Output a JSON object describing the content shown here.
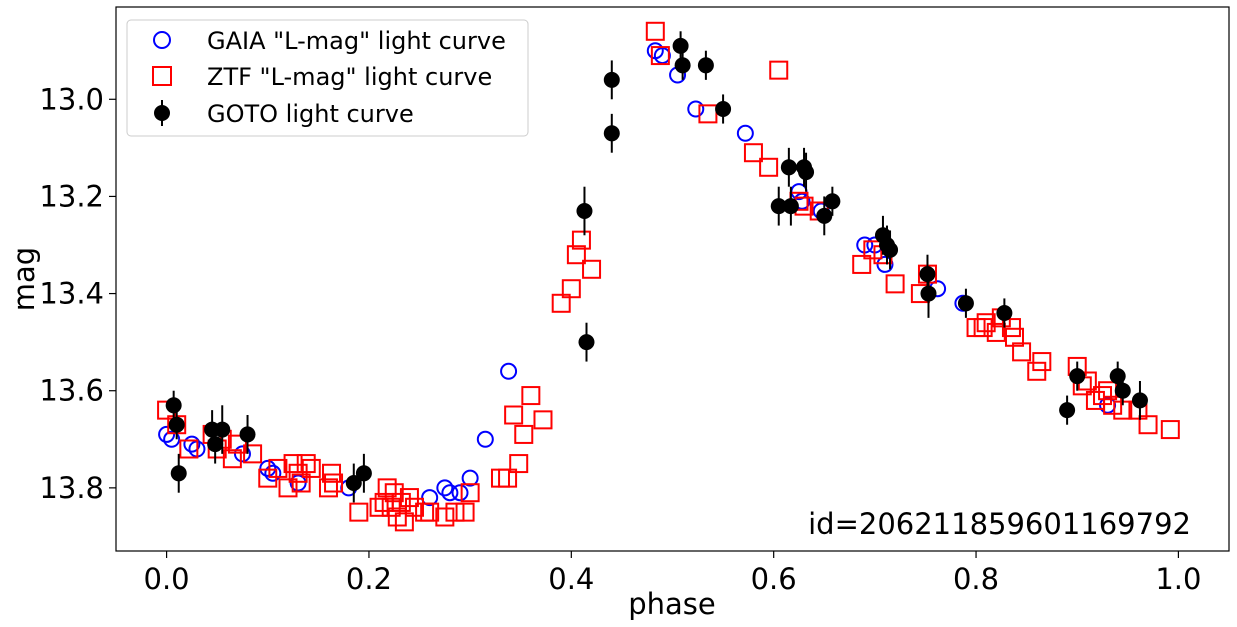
{
  "chart_data": {
    "type": "scatter",
    "title": "",
    "xlabel": "phase",
    "ylabel": "mag",
    "xlim": [
      -0.05,
      1.05
    ],
    "ylim": [
      13.93,
      12.81
    ],
    "y_inverted": true,
    "xticks": [
      0.0,
      0.2,
      0.4,
      0.6,
      0.8,
      1.0
    ],
    "xtick_labels": [
      "0.0",
      "0.2",
      "0.4",
      "0.6",
      "0.8",
      "1.0"
    ],
    "yticks": [
      13.0,
      13.2,
      13.4,
      13.6,
      13.8
    ],
    "ytick_labels": [
      "13.0",
      "13.2",
      "13.4",
      "13.6",
      "13.8"
    ],
    "grid": false,
    "legend_position": "top-left",
    "annotation": "id=2062118596011697​92",
    "series": [
      {
        "name": "GAIA \"L-mag\" light curve",
        "marker": "open-circle",
        "color": "#0000ff",
        "points": [
          [
            0.0,
            13.69
          ],
          [
            0.005,
            13.7
          ],
          [
            0.025,
            13.71
          ],
          [
            0.03,
            13.72
          ],
          [
            0.075,
            13.73
          ],
          [
            0.1,
            13.76
          ],
          [
            0.105,
            13.77
          ],
          [
            0.13,
            13.79
          ],
          [
            0.18,
            13.8
          ],
          [
            0.26,
            13.82
          ],
          [
            0.275,
            13.8
          ],
          [
            0.28,
            13.81
          ],
          [
            0.29,
            13.81
          ],
          [
            0.3,
            13.78
          ],
          [
            0.315,
            13.7
          ],
          [
            0.338,
            13.56
          ],
          [
            0.483,
            12.9
          ],
          [
            0.49,
            12.91
          ],
          [
            0.505,
            12.95
          ],
          [
            0.523,
            13.02
          ],
          [
            0.572,
            13.07
          ],
          [
            0.625,
            13.19
          ],
          [
            0.628,
            13.21
          ],
          [
            0.647,
            13.23
          ],
          [
            0.69,
            13.3
          ],
          [
            0.7,
            13.3
          ],
          [
            0.71,
            13.34
          ],
          [
            0.762,
            13.39
          ],
          [
            0.787,
            13.42
          ],
          [
            0.93,
            13.63
          ]
        ]
      },
      {
        "name": "ZTF \"L-mag\" light curve",
        "marker": "open-square",
        "color": "#ff0000",
        "points": [
          [
            0.0,
            13.64
          ],
          [
            0.01,
            13.67
          ],
          [
            0.022,
            13.72
          ],
          [
            0.045,
            13.69
          ],
          [
            0.05,
            13.72
          ],
          [
            0.055,
            13.7
          ],
          [
            0.065,
            13.74
          ],
          [
            0.07,
            13.71
          ],
          [
            0.085,
            13.73
          ],
          [
            0.1,
            13.78
          ],
          [
            0.11,
            13.76
          ],
          [
            0.12,
            13.8
          ],
          [
            0.125,
            13.75
          ],
          [
            0.13,
            13.77
          ],
          [
            0.133,
            13.79
          ],
          [
            0.138,
            13.75
          ],
          [
            0.143,
            13.76
          ],
          [
            0.16,
            13.8
          ],
          [
            0.163,
            13.77
          ],
          [
            0.165,
            13.79
          ],
          [
            0.19,
            13.85
          ],
          [
            0.21,
            13.84
          ],
          [
            0.215,
            13.83
          ],
          [
            0.218,
            13.8
          ],
          [
            0.222,
            13.84
          ],
          [
            0.225,
            13.81
          ],
          [
            0.228,
            13.86
          ],
          [
            0.232,
            13.83
          ],
          [
            0.235,
            13.87
          ],
          [
            0.24,
            13.82
          ],
          [
            0.245,
            13.84
          ],
          [
            0.255,
            13.85
          ],
          [
            0.26,
            13.85
          ],
          [
            0.275,
            13.86
          ],
          [
            0.285,
            13.85
          ],
          [
            0.295,
            13.85
          ],
          [
            0.3,
            13.81
          ],
          [
            0.33,
            13.78
          ],
          [
            0.337,
            13.78
          ],
          [
            0.343,
            13.65
          ],
          [
            0.348,
            13.75
          ],
          [
            0.353,
            13.69
          ],
          [
            0.36,
            13.61
          ],
          [
            0.372,
            13.66
          ],
          [
            0.39,
            13.42
          ],
          [
            0.4,
            13.39
          ],
          [
            0.405,
            13.32
          ],
          [
            0.41,
            13.29
          ],
          [
            0.42,
            13.35
          ],
          [
            0.483,
            12.86
          ],
          [
            0.488,
            12.91
          ],
          [
            0.535,
            13.03
          ],
          [
            0.58,
            13.11
          ],
          [
            0.595,
            13.14
          ],
          [
            0.605,
            12.94
          ],
          [
            0.625,
            13.21
          ],
          [
            0.63,
            13.22
          ],
          [
            0.645,
            13.23
          ],
          [
            0.687,
            13.34
          ],
          [
            0.698,
            13.31
          ],
          [
            0.708,
            13.32
          ],
          [
            0.72,
            13.38
          ],
          [
            0.745,
            13.4
          ],
          [
            0.752,
            13.36
          ],
          [
            0.8,
            13.47
          ],
          [
            0.807,
            13.47
          ],
          [
            0.81,
            13.46
          ],
          [
            0.82,
            13.48
          ],
          [
            0.825,
            13.45
          ],
          [
            0.835,
            13.47
          ],
          [
            0.838,
            13.49
          ],
          [
            0.845,
            13.52
          ],
          [
            0.86,
            13.56
          ],
          [
            0.865,
            13.54
          ],
          [
            0.9,
            13.55
          ],
          [
            0.905,
            13.59
          ],
          [
            0.91,
            13.58
          ],
          [
            0.918,
            13.62
          ],
          [
            0.925,
            13.61
          ],
          [
            0.93,
            13.6
          ],
          [
            0.935,
            13.63
          ],
          [
            0.945,
            13.64
          ],
          [
            0.96,
            13.64
          ],
          [
            0.97,
            13.67
          ],
          [
            0.992,
            13.68
          ]
        ]
      },
      {
        "name": "GOTO light curve",
        "marker": "filled-circle-errorbar",
        "color": "#000000",
        "points": [
          [
            0.007,
            13.63,
            0.03
          ],
          [
            0.01,
            13.67,
            0.03
          ],
          [
            0.012,
            13.77,
            0.04
          ],
          [
            0.045,
            13.68,
            0.04
          ],
          [
            0.048,
            13.71,
            0.04
          ],
          [
            0.055,
            13.68,
            0.05
          ],
          [
            0.08,
            13.69,
            0.04
          ],
          [
            0.185,
            13.79,
            0.04
          ],
          [
            0.195,
            13.77,
            0.04
          ],
          [
            0.413,
            13.23,
            0.05
          ],
          [
            0.415,
            13.5,
            0.04
          ],
          [
            0.44,
            12.96,
            0.04
          ],
          [
            0.44,
            13.07,
            0.04
          ],
          [
            0.508,
            12.89,
            0.03
          ],
          [
            0.51,
            12.93,
            0.03
          ],
          [
            0.533,
            12.93,
            0.03
          ],
          [
            0.55,
            13.02,
            0.03
          ],
          [
            0.605,
            13.22,
            0.04
          ],
          [
            0.615,
            13.14,
            0.04
          ],
          [
            0.617,
            13.22,
            0.04
          ],
          [
            0.63,
            13.14,
            0.04
          ],
          [
            0.632,
            13.15,
            0.04
          ],
          [
            0.65,
            13.24,
            0.04
          ],
          [
            0.658,
            13.21,
            0.03
          ],
          [
            0.708,
            13.28,
            0.04
          ],
          [
            0.712,
            13.3,
            0.04
          ],
          [
            0.715,
            13.31,
            0.04
          ],
          [
            0.752,
            13.36,
            0.04
          ],
          [
            0.753,
            13.4,
            0.05
          ],
          [
            0.79,
            13.42,
            0.03
          ],
          [
            0.828,
            13.44,
            0.03
          ],
          [
            0.89,
            13.64,
            0.03
          ],
          [
            0.9,
            13.57,
            0.03
          ],
          [
            0.94,
            13.57,
            0.03
          ],
          [
            0.945,
            13.6,
            0.03
          ],
          [
            0.962,
            13.62,
            0.04
          ]
        ]
      }
    ]
  }
}
